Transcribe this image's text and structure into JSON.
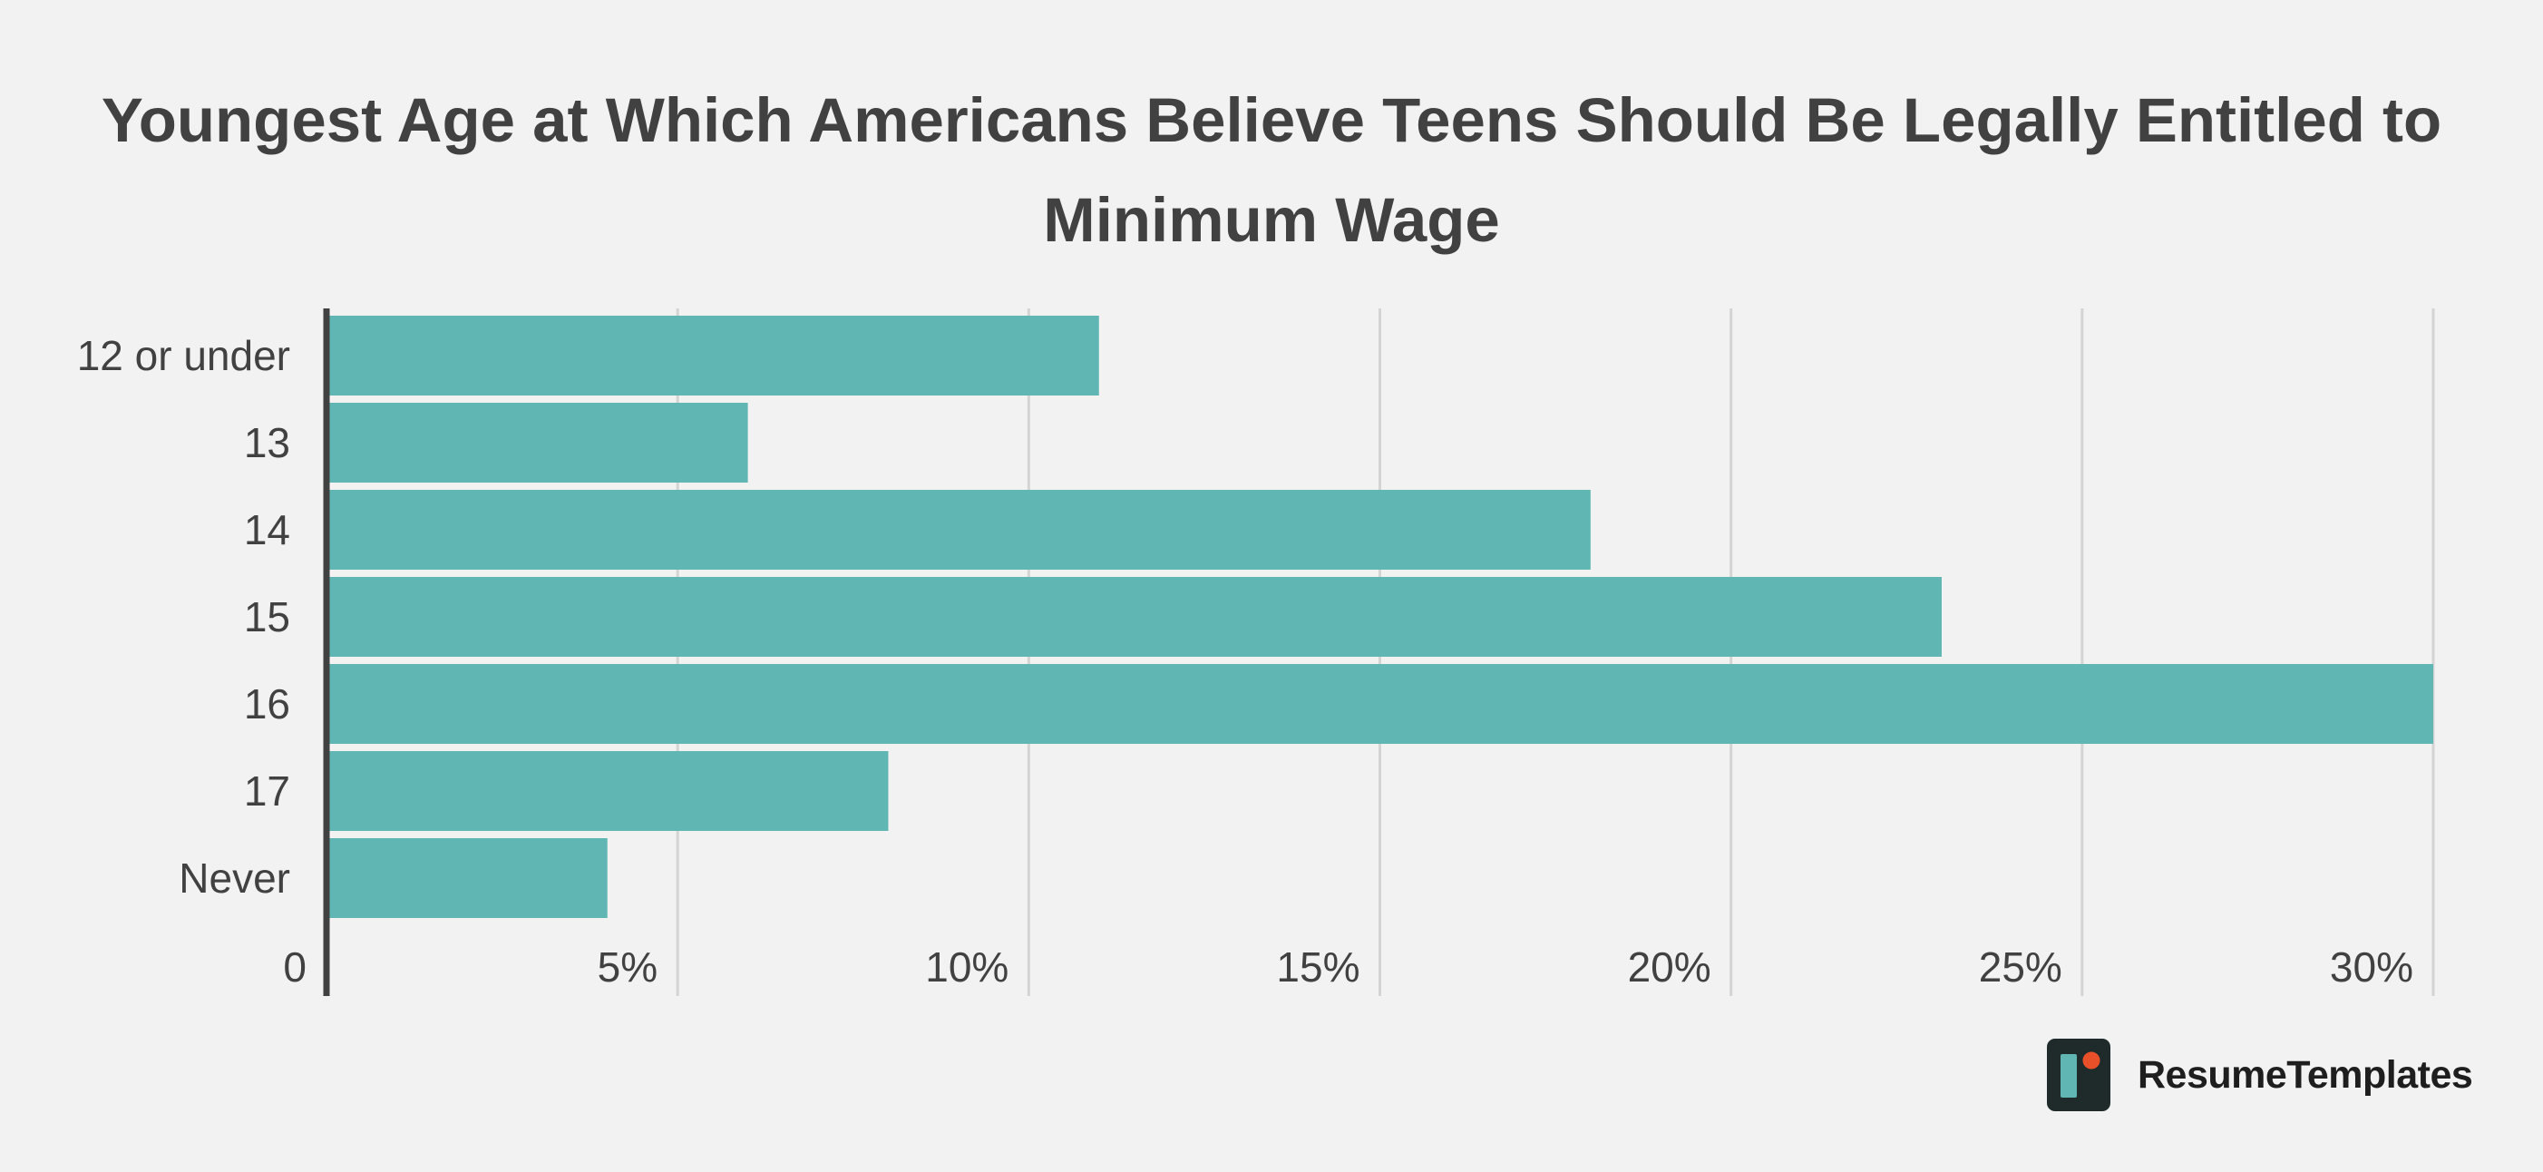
{
  "chart_data": {
    "type": "bar",
    "orientation": "horizontal",
    "title": "Youngest Age at Which Americans Believe Teens Should Be Legally Entitled to Minimum Wage",
    "title_lines": [
      "Youngest Age at Which Americans Believe Teens Should Be Legally Entitled to",
      "Minimum Wage"
    ],
    "categories": [
      "12 or under",
      "13",
      "14",
      "15",
      "16",
      "17",
      "Never"
    ],
    "values": [
      11,
      6,
      18,
      23,
      30,
      8,
      4
    ],
    "xlim": [
      0,
      30
    ],
    "x_ticks": [
      0,
      5,
      10,
      15,
      20,
      25,
      30
    ],
    "x_tick_labels": [
      "0",
      "5%",
      "10%",
      "15%",
      "20%",
      "25%",
      "30%"
    ],
    "grid": true,
    "bar_color": "#5fb6b2"
  },
  "branding": {
    "name": "ResumeTemplates",
    "logo_colors": {
      "background": "#1f2b2a",
      "bar": "#5fb6b2",
      "dot": "#e8502a"
    }
  }
}
